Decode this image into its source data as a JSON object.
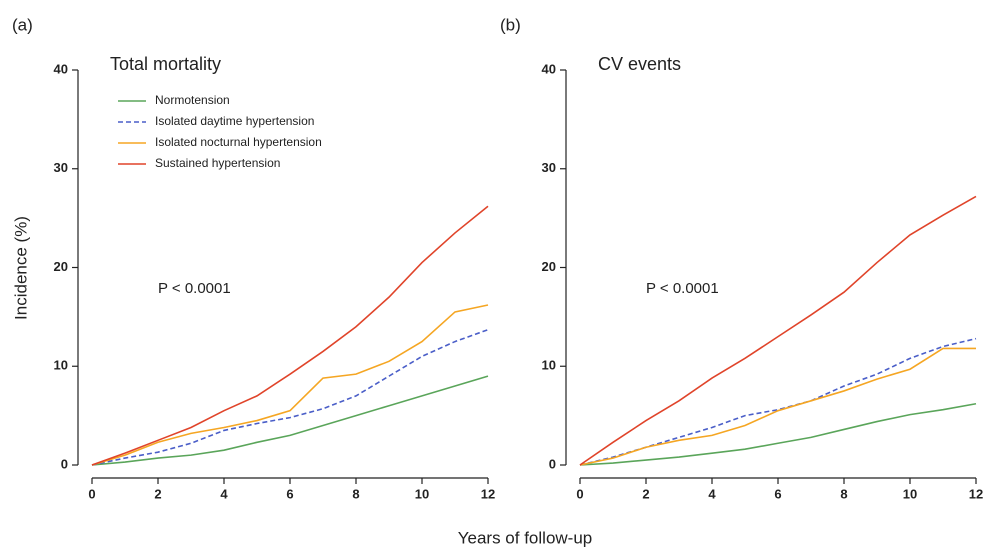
{
  "ylabel": "Incidence (%)",
  "xlabel": "Years of follow-up",
  "chart_data": [
    {
      "type": "line",
      "panel": "(a)",
      "title": "Total mortality",
      "annotation": "P < 0.0001",
      "legend": "upper left",
      "x": [
        0,
        1,
        2,
        3,
        4,
        5,
        6,
        7,
        8,
        9,
        10,
        11,
        12
      ],
      "xlim": [
        0,
        12
      ],
      "xticks": [
        0,
        2,
        4,
        6,
        8,
        10,
        12
      ],
      "ylim": [
        0,
        40
      ],
      "yticks": [
        0,
        10,
        20,
        30,
        40
      ],
      "series": [
        {
          "name": "Normotension",
          "color": "#5aa55a",
          "linestyle": "solid",
          "values": [
            0,
            0.3,
            0.7,
            1.0,
            1.5,
            2.3,
            3.0,
            4.0,
            5.0,
            6.0,
            7.0,
            8.0,
            9.0
          ]
        },
        {
          "name": "Isolated daytime hypertension",
          "color": "#4a5ec8",
          "linestyle": "dashed",
          "values": [
            0,
            0.7,
            1.3,
            2.2,
            3.5,
            4.2,
            4.8,
            5.7,
            7.0,
            9.0,
            11.0,
            12.5,
            13.7
          ]
        },
        {
          "name": "Isolated nocturnal hypertension",
          "color": "#f5a623",
          "linestyle": "solid",
          "values": [
            0,
            1.0,
            2.3,
            3.2,
            3.8,
            4.5,
            5.5,
            8.8,
            9.2,
            10.5,
            12.5,
            15.5,
            16.2
          ]
        },
        {
          "name": "Sustained hypertension",
          "color": "#e0442a",
          "linestyle": "solid",
          "values": [
            0,
            1.2,
            2.5,
            3.8,
            5.5,
            7.0,
            9.2,
            11.5,
            14.0,
            17.0,
            20.5,
            23.5,
            26.2
          ]
        }
      ]
    },
    {
      "type": "line",
      "panel": "(b)",
      "title": "CV events",
      "annotation": "P < 0.0001",
      "x": [
        0,
        1,
        2,
        3,
        4,
        5,
        6,
        7,
        8,
        9,
        10,
        11,
        12
      ],
      "xlim": [
        0,
        12
      ],
      "xticks": [
        0,
        2,
        4,
        6,
        8,
        10,
        12
      ],
      "ylim": [
        0,
        40
      ],
      "yticks": [
        0,
        10,
        20,
        30,
        40
      ],
      "series": [
        {
          "name": "Normotension",
          "color": "#5aa55a",
          "linestyle": "solid",
          "values": [
            0,
            0.2,
            0.5,
            0.8,
            1.2,
            1.6,
            2.2,
            2.8,
            3.6,
            4.4,
            5.1,
            5.6,
            6.2
          ]
        },
        {
          "name": "Isolated daytime hypertension",
          "color": "#4a5ec8",
          "linestyle": "dashed",
          "values": [
            0,
            0.8,
            1.8,
            2.8,
            3.8,
            5.0,
            5.6,
            6.5,
            8.0,
            9.2,
            10.8,
            12.0,
            12.8
          ]
        },
        {
          "name": "Isolated nocturnal hypertension",
          "color": "#f5a623",
          "linestyle": "solid",
          "values": [
            0,
            0.7,
            1.8,
            2.5,
            3.0,
            4.0,
            5.5,
            6.5,
            7.5,
            8.7,
            9.7,
            11.8,
            11.8
          ]
        },
        {
          "name": "Sustained hypertension",
          "color": "#e0442a",
          "linestyle": "solid",
          "values": [
            0,
            2.3,
            4.5,
            6.5,
            8.8,
            10.8,
            13.0,
            15.2,
            17.5,
            20.5,
            23.3,
            25.3,
            27.2
          ]
        }
      ]
    }
  ]
}
